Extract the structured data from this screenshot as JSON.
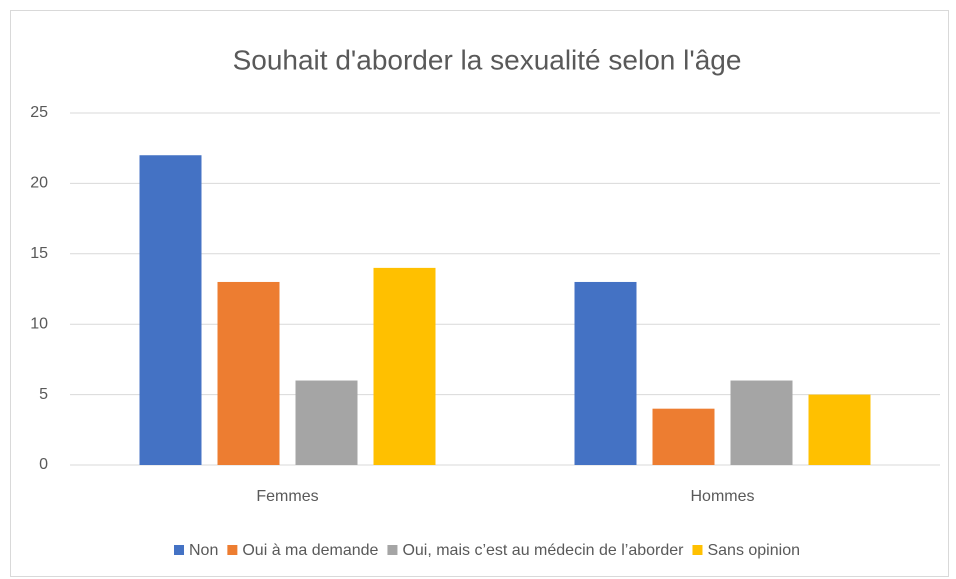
{
  "chart_data": {
    "type": "bar",
    "title": "Souhait d'aborder la sexualité selon l'âge",
    "categories": [
      "Femmes",
      "Hommes"
    ],
    "series": [
      {
        "name": "Non",
        "color": "#4472c4",
        "values": [
          22,
          13
        ]
      },
      {
        "name": "Oui à ma demande",
        "color": "#ed7d31",
        "values": [
          13,
          4
        ]
      },
      {
        "name": "Oui, mais c’est au médecin de l’aborder",
        "color": "#a5a5a5",
        "values": [
          6,
          6
        ]
      },
      {
        "name": "Sans opinion",
        "color": "#ffc000",
        "values": [
          14,
          5
        ]
      }
    ],
    "ylim": [
      0,
      25
    ],
    "yticks": [
      0,
      5,
      10,
      15,
      20,
      25
    ],
    "grid": true,
    "legend": "bottom"
  }
}
